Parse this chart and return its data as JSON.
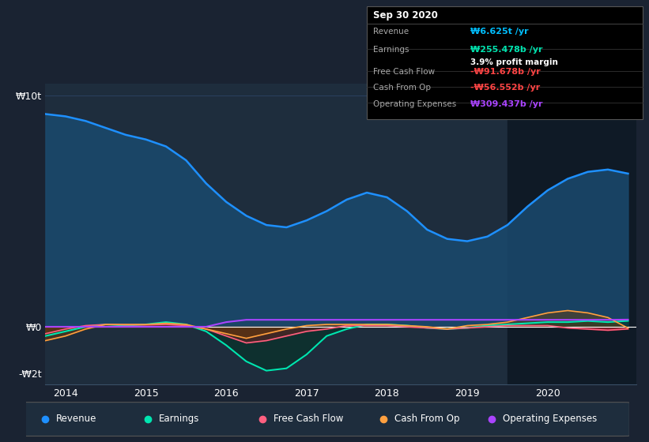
{
  "bg_color": "#1a2332",
  "plot_bg_color": "#1e2d3d",
  "highlight_bg": "#0f1a26",
  "title_box": {
    "date": "Sep 30 2020",
    "rows": [
      {
        "label": "Revenue",
        "value": "₩6.625t /yr",
        "value_color": "#00bfff"
      },
      {
        "label": "Earnings",
        "value": "₩255.478b /yr",
        "value_color": "#00e5b0",
        "sub": "3.9% profit margin"
      },
      {
        "label": "Free Cash Flow",
        "value": "-₩91.678b /yr",
        "value_color": "#ff4444"
      },
      {
        "label": "Cash From Op",
        "value": "-₩56.552b /yr",
        "value_color": "#ff4444"
      },
      {
        "label": "Operating Expenses",
        "value": "₩309.437b /yr",
        "value_color": "#aa44ff"
      }
    ]
  },
  "yticks": [
    10000,
    0,
    -2000
  ],
  "ytick_labels": [
    "₩10t",
    "₩0",
    "-₩2t"
  ],
  "xticks": [
    2014,
    2015,
    2016,
    2017,
    2018,
    2019,
    2020
  ],
  "revenue": {
    "x": [
      2013.75,
      2014.0,
      2014.25,
      2014.5,
      2014.75,
      2015.0,
      2015.25,
      2015.5,
      2015.75,
      2016.0,
      2016.25,
      2016.5,
      2016.75,
      2017.0,
      2017.25,
      2017.5,
      2017.75,
      2018.0,
      2018.25,
      2018.5,
      2018.75,
      2019.0,
      2019.25,
      2019.5,
      2019.75,
      2020.0,
      2020.25,
      2020.5,
      2020.75,
      2021.0
    ],
    "y": [
      9200,
      9100,
      8900,
      8600,
      8300,
      8100,
      7800,
      7200,
      6200,
      5400,
      4800,
      4400,
      4300,
      4600,
      5000,
      5500,
      5800,
      5600,
      5000,
      4200,
      3800,
      3700,
      3900,
      4400,
      5200,
      5900,
      6400,
      6700,
      6800,
      6625
    ],
    "color": "#1e90ff",
    "fill_color": "#1a4a6e",
    "linewidth": 1.8
  },
  "earnings": {
    "x": [
      2013.75,
      2014.0,
      2014.25,
      2014.5,
      2014.75,
      2015.0,
      2015.25,
      2015.5,
      2015.75,
      2016.0,
      2016.25,
      2016.5,
      2016.75,
      2017.0,
      2017.25,
      2017.5,
      2017.75,
      2018.0,
      2018.25,
      2018.5,
      2018.75,
      2019.0,
      2019.25,
      2019.5,
      2019.75,
      2020.0,
      2020.25,
      2020.5,
      2020.75,
      2021.0
    ],
    "y": [
      -400,
      -200,
      0,
      100,
      50,
      100,
      200,
      100,
      -200,
      -800,
      -1500,
      -1900,
      -1800,
      -1200,
      -400,
      -100,
      100,
      100,
      50,
      -50,
      -100,
      -50,
      50,
      100,
      150,
      200,
      200,
      250,
      200,
      255
    ],
    "color": "#00e5b0",
    "linewidth": 1.5
  },
  "fcf": {
    "x": [
      2013.75,
      2014.0,
      2014.25,
      2014.5,
      2014.75,
      2015.0,
      2015.25,
      2015.5,
      2015.75,
      2016.0,
      2016.25,
      2016.5,
      2016.75,
      2017.0,
      2017.25,
      2017.5,
      2017.75,
      2018.0,
      2018.25,
      2018.5,
      2018.75,
      2019.0,
      2019.25,
      2019.5,
      2019.75,
      2020.0,
      2020.25,
      2020.5,
      2020.75,
      2021.0
    ],
    "y": [
      -300,
      -100,
      50,
      100,
      80,
      80,
      100,
      50,
      -100,
      -400,
      -700,
      -600,
      -400,
      -200,
      -100,
      50,
      50,
      50,
      0,
      -50,
      -100,
      -50,
      0,
      50,
      50,
      50,
      -50,
      -100,
      -150,
      -92
    ],
    "color": "#ff6080",
    "fill_color": "#8b1a2a",
    "linewidth": 1.2
  },
  "cashfromop": {
    "x": [
      2013.75,
      2014.0,
      2014.25,
      2014.5,
      2014.75,
      2015.0,
      2015.25,
      2015.5,
      2015.75,
      2016.0,
      2016.25,
      2016.5,
      2016.75,
      2017.0,
      2017.25,
      2017.5,
      2017.75,
      2018.0,
      2018.25,
      2018.5,
      2018.75,
      2019.0,
      2019.25,
      2019.5,
      2019.75,
      2020.0,
      2020.25,
      2020.5,
      2020.75,
      2021.0
    ],
    "y": [
      -600,
      -400,
      -100,
      100,
      100,
      100,
      150,
      100,
      -100,
      -300,
      -500,
      -300,
      -100,
      50,
      100,
      100,
      100,
      100,
      50,
      0,
      -100,
      50,
      100,
      200,
      400,
      600,
      700,
      600,
      400,
      -57
    ],
    "color": "#ffa040",
    "linewidth": 1.2
  },
  "opex": {
    "x": [
      2013.75,
      2014.0,
      2014.25,
      2014.5,
      2014.75,
      2015.0,
      2015.25,
      2015.5,
      2015.75,
      2016.0,
      2016.25,
      2016.5,
      2016.75,
      2017.0,
      2017.25,
      2017.5,
      2017.75,
      2018.0,
      2018.25,
      2018.5,
      2018.75,
      2019.0,
      2019.25,
      2019.5,
      2019.75,
      2020.0,
      2020.25,
      2020.5,
      2020.75,
      2021.0
    ],
    "y": [
      0,
      0,
      0,
      0,
      0,
      0,
      0,
      0,
      0,
      200,
      300,
      300,
      300,
      300,
      300,
      300,
      300,
      300,
      300,
      300,
      300,
      300,
      300,
      300,
      300,
      300,
      300,
      300,
      300,
      309
    ],
    "color": "#aa44ff",
    "linewidth": 1.5
  },
  "highlight_start": 2019.5,
  "ylim": [
    -2500,
    10500
  ],
  "xlim": [
    2013.75,
    2021.1
  ],
  "legend_items": [
    {
      "label": "Revenue",
      "color": "#1e90ff"
    },
    {
      "label": "Earnings",
      "color": "#00e5b0"
    },
    {
      "label": "Free Cash Flow",
      "color": "#ff6080"
    },
    {
      "label": "Cash From Op",
      "color": "#ffa040"
    },
    {
      "label": "Operating Expenses",
      "color": "#aa44ff"
    }
  ]
}
